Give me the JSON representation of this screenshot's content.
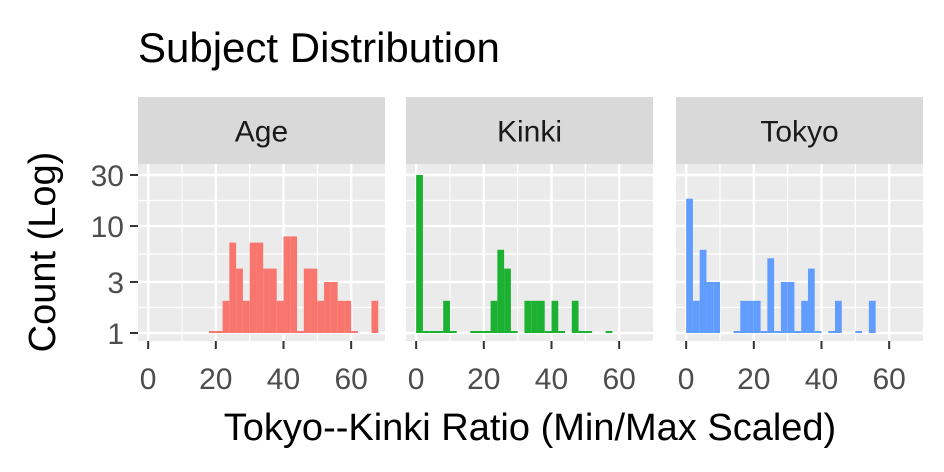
{
  "chart_data": {
    "type": "bar",
    "title": "Subject Distribution",
    "xlabel": "Tokyo--Kinki Ratio (Min/Max Scaled)",
    "ylabel": "Count (Log)",
    "y_scale": "log",
    "ylim": [
      1,
      30
    ],
    "yticks": [
      1,
      3,
      10,
      30
    ],
    "xlim": [
      -3,
      70
    ],
    "xticks": [
      0,
      20,
      40,
      60
    ],
    "grid": true,
    "bin_width": 2,
    "panels": [
      {
        "label": "Age",
        "color": "#F8766D",
        "bins": [
          {
            "x": 18,
            "count": 1
          },
          {
            "x": 20,
            "count": 1
          },
          {
            "x": 22,
            "count": 2
          },
          {
            "x": 24,
            "count": 7
          },
          {
            "x": 26,
            "count": 4
          },
          {
            "x": 28,
            "count": 2
          },
          {
            "x": 30,
            "count": 7
          },
          {
            "x": 32,
            "count": 7
          },
          {
            "x": 34,
            "count": 4
          },
          {
            "x": 36,
            "count": 4
          },
          {
            "x": 38,
            "count": 2
          },
          {
            "x": 40,
            "count": 8
          },
          {
            "x": 42,
            "count": 8
          },
          {
            "x": 44,
            "count": 1
          },
          {
            "x": 46,
            "count": 4
          },
          {
            "x": 48,
            "count": 4
          },
          {
            "x": 50,
            "count": 2
          },
          {
            "x": 52,
            "count": 3
          },
          {
            "x": 54,
            "count": 3
          },
          {
            "x": 56,
            "count": 2
          },
          {
            "x": 58,
            "count": 2
          },
          {
            "x": 60,
            "count": 1
          },
          {
            "x": 66,
            "count": 2
          }
        ]
      },
      {
        "label": "Kinki",
        "color": "#1DB132",
        "bins": [
          {
            "x": 0,
            "count": 30
          },
          {
            "x": 2,
            "count": 1
          },
          {
            "x": 4,
            "count": 1
          },
          {
            "x": 6,
            "count": 1
          },
          {
            "x": 8,
            "count": 2
          },
          {
            "x": 10,
            "count": 1
          },
          {
            "x": 16,
            "count": 1
          },
          {
            "x": 18,
            "count": 1
          },
          {
            "x": 20,
            "count": 1
          },
          {
            "x": 22,
            "count": 2
          },
          {
            "x": 24,
            "count": 6
          },
          {
            "x": 26,
            "count": 4
          },
          {
            "x": 28,
            "count": 1
          },
          {
            "x": 32,
            "count": 2
          },
          {
            "x": 34,
            "count": 2
          },
          {
            "x": 36,
            "count": 2
          },
          {
            "x": 38,
            "count": 1
          },
          {
            "x": 40,
            "count": 2
          },
          {
            "x": 42,
            "count": 1
          },
          {
            "x": 46,
            "count": 2
          },
          {
            "x": 48,
            "count": 1
          },
          {
            "x": 50,
            "count": 1
          },
          {
            "x": 56,
            "count": 1
          }
        ]
      },
      {
        "label": "Tokyo",
        "color": "#619CFF",
        "bins": [
          {
            "x": 0,
            "count": 18
          },
          {
            "x": 2,
            "count": 2
          },
          {
            "x": 4,
            "count": 6
          },
          {
            "x": 6,
            "count": 3
          },
          {
            "x": 8,
            "count": 3
          },
          {
            "x": 14,
            "count": 1
          },
          {
            "x": 16,
            "count": 2
          },
          {
            "x": 18,
            "count": 2
          },
          {
            "x": 20,
            "count": 2
          },
          {
            "x": 22,
            "count": 1
          },
          {
            "x": 24,
            "count": 5
          },
          {
            "x": 26,
            "count": 1
          },
          {
            "x": 28,
            "count": 3
          },
          {
            "x": 30,
            "count": 3
          },
          {
            "x": 32,
            "count": 1
          },
          {
            "x": 34,
            "count": 2
          },
          {
            "x": 36,
            "count": 4
          },
          {
            "x": 38,
            "count": 1
          },
          {
            "x": 42,
            "count": 1
          },
          {
            "x": 44,
            "count": 2
          },
          {
            "x": 50,
            "count": 1
          },
          {
            "x": 54,
            "count": 2
          }
        ]
      }
    ]
  }
}
